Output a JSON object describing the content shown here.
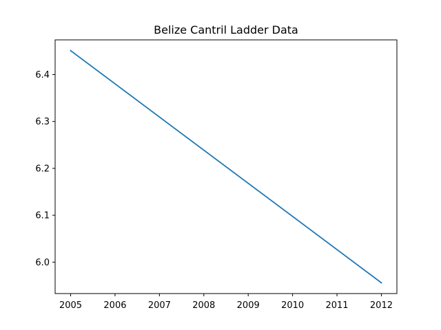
{
  "chart_data": {
    "type": "line",
    "title": "Belize Cantril Ladder Data",
    "xlabel": "",
    "ylabel": "",
    "x": [
      2005,
      2012
    ],
    "series": [
      {
        "values": [
          6.451,
          5.956
        ],
        "color": "#1f77b4"
      }
    ],
    "xlim": [
      2004.65,
      2012.35
    ],
    "ylim": [
      5.933,
      6.474
    ],
    "xticks": [
      "2005",
      "2006",
      "2007",
      "2008",
      "2009",
      "2010",
      "2011",
      "2012"
    ],
    "yticks": [
      "6.0",
      "6.1",
      "6.2",
      "6.3",
      "6.4"
    ],
    "grid": false,
    "legend": "none"
  }
}
